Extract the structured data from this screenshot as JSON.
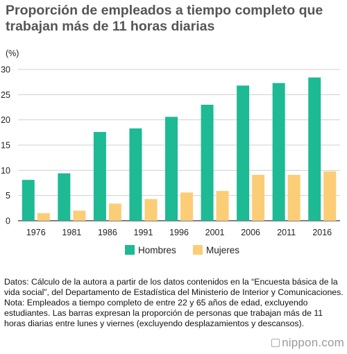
{
  "title": "Proporción de empleados a tiempo completo que trabajan más de 11 horas diarias",
  "chart_data": {
    "type": "bar",
    "ylabel": "(%)",
    "ylim": [
      0,
      30
    ],
    "yticks": [
      0,
      5,
      10,
      15,
      20,
      25,
      30
    ],
    "grid": true,
    "legend_position": "bottom",
    "categories": [
      "1976",
      "1981",
      "1986",
      "1991",
      "1996",
      "2001",
      "2006",
      "2011",
      "2016"
    ],
    "series": [
      {
        "name": "Hombres",
        "color": "#1dba94",
        "values": [
          8.1,
          9.4,
          17.6,
          18.3,
          20.6,
          23.0,
          26.8,
          27.3,
          28.4
        ]
      },
      {
        "name": "Mujeres",
        "color": "#fccd77",
        "values": [
          1.5,
          2.0,
          3.4,
          4.3,
          5.6,
          5.9,
          9.1,
          9.1,
          9.8
        ]
      }
    ]
  },
  "footnotes": {
    "source": "Datos: Cálculo de la autora a partir de los datos contenidos en la “Encuesta básica de la vida social”, del Departamento de Estadística del Ministerio de Interior y Comunicaciones.",
    "note": "Nota: Empleados a tiempo completo de entre 22 y 65 años de edad, excluyendo estudiantes. Las barras expresan la proporción de personas que trabajan más de 11 horas diarias entre lunes y viernes (excluyendo desplazamientos y descansos)."
  },
  "branding": {
    "text": "nippon.com",
    "icon": "nippon-logo-icon"
  }
}
